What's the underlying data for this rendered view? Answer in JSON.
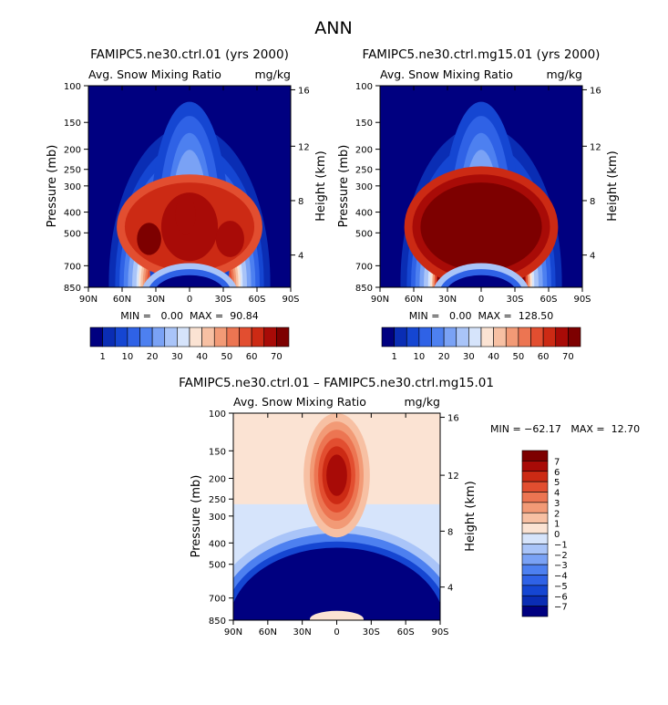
{
  "page_title": "ANN",
  "colors": {
    "ramp_abs": [
      "#000080",
      "#0a2db4",
      "#1546d2",
      "#2f62e6",
      "#4d80f0",
      "#7aa2f5",
      "#a9c4f8",
      "#d6e4fb",
      "#fbe3d3",
      "#f7c0a3",
      "#f29a76",
      "#ec7552",
      "#e24e30",
      "#cc2a14",
      "#a80b07",
      "#7d0000"
    ],
    "ramp_diff": [
      "#000080",
      "#0a2db4",
      "#1546d2",
      "#2f62e6",
      "#4d80f0",
      "#7aa2f5",
      "#a9c4f8",
      "#d6e4fb",
      "#fbe3d3",
      "#f7c0a3",
      "#f29a76",
      "#ec7552",
      "#e24e30",
      "#cc2a14",
      "#a80b07",
      "#7d0000"
    ]
  },
  "chart_data": [
    {
      "type": "heatmap",
      "title": "FAMIPC5.ne30.ctrl.01 (yrs 2000)",
      "subtitle_left": "Avg. Snow Mixing Ratio",
      "subtitle_right": "mg/kg",
      "ylabel": "Pressure (mb)",
      "ylabel_right": "Height (km)",
      "x_ticks": [
        "90N",
        "60N",
        "30N",
        "0",
        "30S",
        "60S",
        "90S"
      ],
      "y_ticks": [
        "100",
        "150",
        "200",
        "250",
        "300",
        "400",
        "500",
        "700",
        "850"
      ],
      "y_right_ticks": [
        "16",
        "12",
        "8",
        "4"
      ],
      "stats_text": "MIN =   0.00  MAX =  90.84",
      "colorbar_labels": [
        "1",
        "10",
        "20",
        "30",
        "40",
        "50",
        "60",
        "70"
      ],
      "min": 0.0,
      "max": 90.84
    },
    {
      "type": "heatmap",
      "title": "FAMIPC5.ne30.ctrl.mg15.01 (yrs 2000)",
      "subtitle_left": "Avg. Snow Mixing Ratio",
      "subtitle_right": "mg/kg",
      "ylabel": "Pressure (mb)",
      "ylabel_right": "Height (km)",
      "x_ticks": [
        "90N",
        "60N",
        "30N",
        "0",
        "30S",
        "60S",
        "90S"
      ],
      "y_ticks": [
        "100",
        "150",
        "200",
        "250",
        "300",
        "400",
        "500",
        "700",
        "850"
      ],
      "y_right_ticks": [
        "16",
        "12",
        "8",
        "4"
      ],
      "stats_text": "MIN =   0.00  MAX =  128.50",
      "colorbar_labels": [
        "1",
        "10",
        "20",
        "30",
        "40",
        "50",
        "60",
        "70"
      ],
      "min": 0.0,
      "max": 128.5
    },
    {
      "type": "heatmap",
      "title": "FAMIPC5.ne30.ctrl.01 – FAMIPC5.ne30.ctrl.mg15.01",
      "subtitle_left": "Avg. Snow Mixing Ratio",
      "subtitle_right": "mg/kg",
      "ylabel": "Pressure (mb)",
      "ylabel_right": "Height (km)",
      "x_ticks": [
        "90N",
        "60N",
        "30N",
        "0",
        "30S",
        "60S",
        "90S"
      ],
      "y_ticks": [
        "100",
        "150",
        "200",
        "250",
        "300",
        "400",
        "500",
        "700",
        "850"
      ],
      "y_right_ticks": [
        "16",
        "12",
        "8",
        "4"
      ],
      "stats_text": "MIN = −62.17   MAX =  12.70",
      "colorbar_labels": [
        "7",
        "6",
        "5",
        "4",
        "3",
        "2",
        "1",
        "0",
        "−1",
        "−2",
        "−3",
        "−4",
        "−5",
        "−6",
        "−7"
      ],
      "min": -62.17,
      "max": 12.7
    }
  ]
}
